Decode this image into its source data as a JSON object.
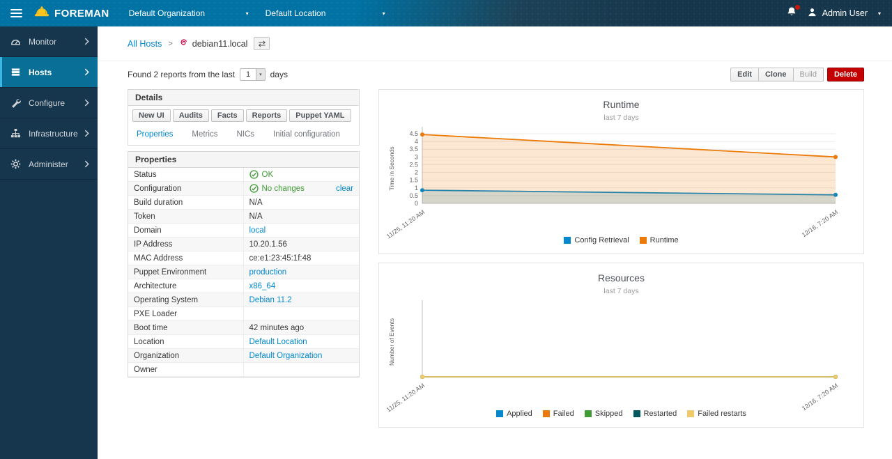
{
  "colors": {
    "accent_blue": "#0088ce",
    "navbar_left": "#0072a3",
    "navbar_right": "#16364b",
    "sidebar_bg": "#15364d",
    "sidebar_active_bg": "#0a6f96",
    "sidebar_active_border": "#3cb6e3",
    "success_green": "#3f9c35",
    "danger_red": "#c40000",
    "debian_red": "#d0114f",
    "logo_yellow": "#f8c41d"
  },
  "navbar": {
    "brand": "FOREMAN",
    "org_selector": "Default Organization",
    "loc_selector": "Default Location",
    "user": "Admin User"
  },
  "sidebar": {
    "items": [
      {
        "label": "Monitor",
        "icon": "gauge-icon",
        "active": false
      },
      {
        "label": "Hosts",
        "icon": "server-icon",
        "active": true
      },
      {
        "label": "Configure",
        "icon": "wrench-icon",
        "active": false
      },
      {
        "label": "Infrastructure",
        "icon": "sitemap-icon",
        "active": false
      },
      {
        "label": "Administer",
        "icon": "gear-icon",
        "active": false
      }
    ]
  },
  "breadcrumb": {
    "parent": "All Hosts",
    "separator": ">",
    "current": "debian11.local"
  },
  "toolbar": {
    "found_prefix": "Found 2 reports from the last",
    "days_value": "1",
    "found_suffix": "days",
    "actions": [
      {
        "label": "Edit"
      },
      {
        "label": "Clone"
      },
      {
        "label": "Build",
        "disabled": true
      },
      {
        "label": "Delete",
        "danger": true
      }
    ]
  },
  "details": {
    "title": "Details",
    "buttons": [
      "New UI",
      "Audits",
      "Facts",
      "Reports",
      "Puppet YAML"
    ],
    "tabs": [
      {
        "label": "Properties",
        "active": true
      },
      {
        "label": "Metrics",
        "active": false
      },
      {
        "label": "NICs",
        "active": false
      },
      {
        "label": "Initial configuration",
        "active": false
      }
    ]
  },
  "properties": {
    "title": "Properties",
    "rows": [
      {
        "label": "Status",
        "status": "OK"
      },
      {
        "label": "Configuration",
        "status": "No changes",
        "extra": "clear"
      },
      {
        "label": "Build duration",
        "value": "N/A"
      },
      {
        "label": "Token",
        "value": "N/A"
      },
      {
        "label": "Domain",
        "value": "local",
        "link": true
      },
      {
        "label": "IP Address",
        "value": "10.20.1.56"
      },
      {
        "label": "MAC Address",
        "value": "ce:e1:23:45:1f:48"
      },
      {
        "label": "Puppet Environment",
        "value": "production",
        "link": true
      },
      {
        "label": "Architecture",
        "value": "x86_64",
        "link": true
      },
      {
        "label": "Operating System",
        "value": "Debian 11.2",
        "link": true
      },
      {
        "label": "PXE Loader",
        "value": ""
      },
      {
        "label": "Boot time",
        "value": "42 minutes ago"
      },
      {
        "label": "Location",
        "value": "Default Location",
        "link": true
      },
      {
        "label": "Organization",
        "value": "Default Organization",
        "link": true
      },
      {
        "label": "Owner",
        "value": ""
      }
    ]
  },
  "chart_data": [
    {
      "type": "area",
      "title": "Runtime",
      "subtitle": "last 7 days",
      "ylabel": "Time in Seconds",
      "xlabel": "",
      "x": [
        "11/25, 11:20 AM",
        "12/16, 7:20 AM"
      ],
      "ylim": [
        0,
        4.5
      ],
      "yticks": [
        0,
        0.5,
        1,
        1.5,
        2,
        2.5,
        3,
        3.5,
        4,
        4.5
      ],
      "grid": true,
      "legend_position": "bottom",
      "series": [
        {
          "name": "Config Retrieval",
          "color": "#0088ce",
          "values": [
            0.85,
            0.55
          ]
        },
        {
          "name": "Runtime",
          "color": "#ec7a08",
          "values": [
            4.45,
            3.0
          ]
        }
      ]
    },
    {
      "type": "area",
      "title": "Resources",
      "subtitle": "last 7 days",
      "ylabel": "Number of Events",
      "xlabel": "",
      "x": [
        "11/25, 11:20 AM",
        "12/16, 7:20 AM"
      ],
      "ylim": [
        0,
        1
      ],
      "yticks": [],
      "grid": false,
      "legend_position": "bottom",
      "series": [
        {
          "name": "Applied",
          "color": "#0088ce",
          "values": [
            0,
            0
          ]
        },
        {
          "name": "Failed",
          "color": "#ec7a08",
          "values": [
            0,
            0
          ]
        },
        {
          "name": "Skipped",
          "color": "#3f9c35",
          "values": [
            0,
            0
          ]
        },
        {
          "name": "Restarted",
          "color": "#00595f",
          "values": [
            0,
            0
          ]
        },
        {
          "name": "Failed restarts",
          "color": "#f0c96a",
          "values": [
            0,
            0
          ]
        }
      ]
    }
  ]
}
